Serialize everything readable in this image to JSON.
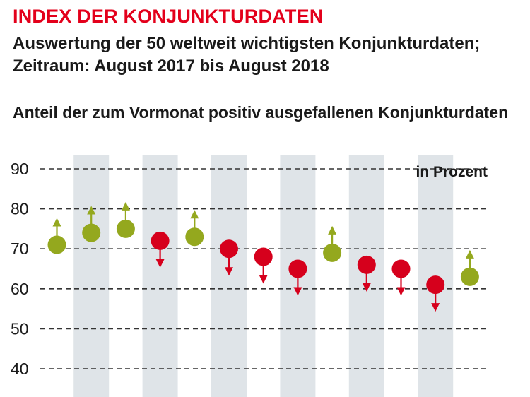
{
  "header": {
    "title": "INDEX DER KONJUNKTURDATEN",
    "subtitle_line1": "Auswertung der 50 weltweit wichtigsten Konjunkturdaten;",
    "subtitle_line2": "Zeitraum: August 2017 bis August 2018",
    "description": "Anteil der zum Vormonat positiv ausgefallenen Konjunkturdaten"
  },
  "colors": {
    "title": "#e3001b",
    "up": "#94a81e",
    "down": "#d6001c",
    "band": "#dfe4e8",
    "grid": "#333333"
  },
  "chart_data": {
    "type": "scatter",
    "unit_label": "in Prozent",
    "ylim": [
      40,
      90
    ],
    "y_ticks": [
      40,
      50,
      60,
      70,
      80,
      90
    ],
    "grid": "dashed-horizontal",
    "points": [
      {
        "value": 71,
        "direction": "up"
      },
      {
        "value": 74,
        "direction": "up"
      },
      {
        "value": 75,
        "direction": "up"
      },
      {
        "value": 72,
        "direction": "down"
      },
      {
        "value": 73,
        "direction": "up"
      },
      {
        "value": 70,
        "direction": "down"
      },
      {
        "value": 68,
        "direction": "down"
      },
      {
        "value": 65,
        "direction": "down"
      },
      {
        "value": 69,
        "direction": "up"
      },
      {
        "value": 66,
        "direction": "down"
      },
      {
        "value": 65,
        "direction": "down"
      },
      {
        "value": 61,
        "direction": "down"
      },
      {
        "value": 63,
        "direction": "up"
      }
    ]
  }
}
